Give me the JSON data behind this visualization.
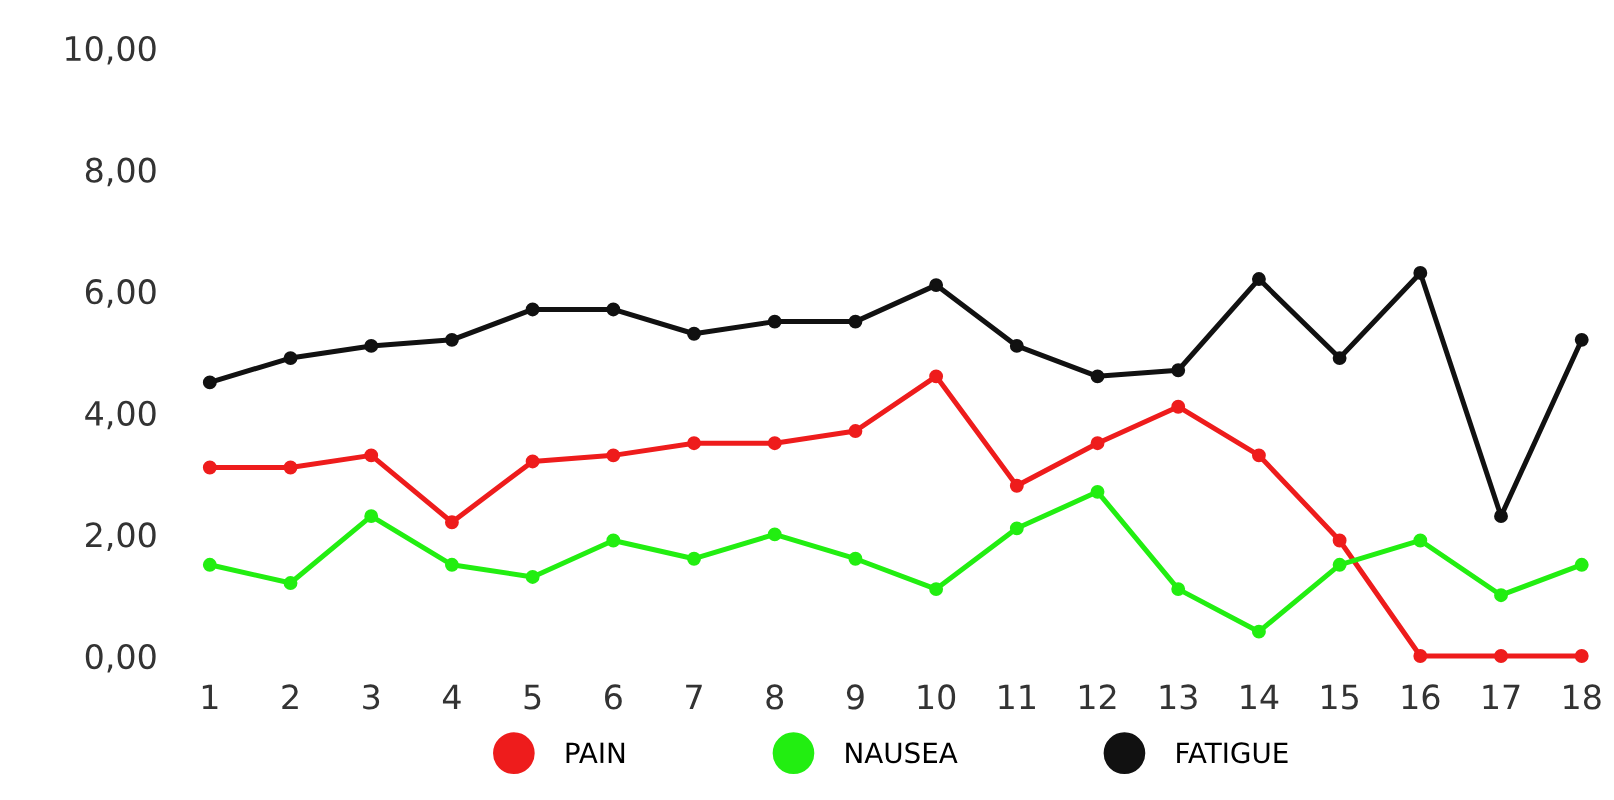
{
  "chart_data": {
    "type": "line",
    "categories": [
      "1",
      "2",
      "3",
      "4",
      "5",
      "6",
      "7",
      "8",
      "9",
      "10",
      "11",
      "12",
      "13",
      "14",
      "15",
      "16",
      "17",
      "18"
    ],
    "series": [
      {
        "name": "PAIN",
        "color": "#ee1c1c",
        "values": [
          3.1,
          3.1,
          3.3,
          2.2,
          3.2,
          3.3,
          3.5,
          3.5,
          3.7,
          4.6,
          2.8,
          3.5,
          4.1,
          3.3,
          1.9,
          0,
          0,
          0
        ]
      },
      {
        "name": "NAUSEA",
        "color": "#22ee11",
        "values": [
          1.5,
          1.2,
          2.3,
          1.5,
          1.3,
          1.9,
          1.6,
          2.0,
          1.6,
          1.1,
          2.1,
          2.7,
          1.1,
          0.4,
          1.5,
          1.9,
          1.0,
          1.5
        ]
      },
      {
        "name": "FATIGUE",
        "color": "#111111",
        "values": [
          4.5,
          4.9,
          5.1,
          5.2,
          5.7,
          5.7,
          5.3,
          5.5,
          5.5,
          6.1,
          5.1,
          4.6,
          4.7,
          6.2,
          4.9,
          6.3,
          2.3,
          5.2
        ]
      }
    ],
    "ylim": [
      0,
      10
    ],
    "yticks": [
      {
        "value": 0,
        "label": "0,00"
      },
      {
        "value": 2,
        "label": "2,00"
      },
      {
        "value": 4,
        "label": "4,00"
      },
      {
        "value": 6,
        "label": "6,00"
      },
      {
        "value": 8,
        "label": "8,00"
      },
      {
        "value": 10,
        "label": "10,00"
      }
    ],
    "grid": false,
    "legend": "bottom",
    "marker": "circle",
    "line_style": "solid"
  }
}
